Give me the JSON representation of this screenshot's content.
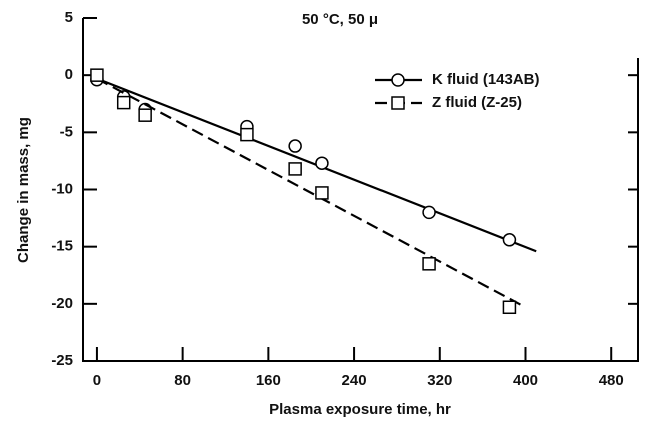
{
  "chart_data": {
    "type": "scatter",
    "title": "50 °C, 50 μ",
    "x_label": "Plasma exposure time, hr",
    "y_label": "Change in mass, mg",
    "xlim": [
      -13,
      505
    ],
    "ylim": [
      -25,
      5
    ],
    "xticks": [
      0,
      80,
      160,
      240,
      320,
      400,
      480
    ],
    "yticks": [
      5,
      0,
      -5,
      -10,
      -15,
      -20,
      -25
    ],
    "legend": "upper right",
    "series": [
      {
        "name": "K fluid  (143AB)",
        "color": "#000000",
        "marker": "circle",
        "dash": "solid",
        "x": [
          0,
          25,
          45,
          140,
          185,
          210,
          310,
          385
        ],
        "values": [
          -0.4,
          -1.9,
          -3.0,
          -4.5,
          -6.2,
          -7.7,
          -12,
          -14.4
        ],
        "fit": {
          "x": [
            0,
            410
          ],
          "values": [
            -0.3,
            -15.4
          ]
        }
      },
      {
        "name": "Z fluid (Z-25)",
        "color": "#000000",
        "marker": "square",
        "dash": "dashed",
        "x": [
          0,
          25,
          45,
          140,
          185,
          210,
          310,
          385
        ],
        "values": [
          0,
          -2.4,
          -3.5,
          -5.2,
          -8.2,
          -10.3,
          -16.5,
          -20.3
        ],
        "fit": {
          "x": [
            0,
            400
          ],
          "values": [
            -0.3,
            -20.3
          ]
        }
      }
    ]
  }
}
